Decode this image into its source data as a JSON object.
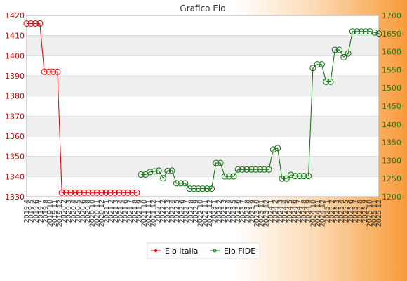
{
  "chart_data": {
    "type": "line",
    "title": "Grafico Elo",
    "x": [
      "2019 4",
      "2019 5",
      "2019 6",
      "2019 7",
      "2019 8",
      "2019 9",
      "2019 10",
      "2019 11",
      "2019 12",
      "2020 1",
      "2020 2",
      "2020 3",
      "2020 4",
      "2020 5",
      "2020 6",
      "2020 7",
      "2020 8",
      "2020 9",
      "2020 10",
      "2020 11",
      "2020 12",
      "2021 1",
      "2021 2",
      "2021 3",
      "2021 4",
      "2021 5",
      "2021 6",
      "2021 7",
      "2021 8",
      "2021 9",
      "2021 10",
      "2021 11",
      "2021 12",
      "2022 1",
      "2022 2",
      "2022 3",
      "2022 4",
      "2022 5",
      "2022 6",
      "2022 7",
      "2022 8",
      "2022 9",
      "2022 10",
      "2022 11",
      "2022 12",
      "2023 1",
      "2023 2",
      "2023 3",
      "2023 4",
      "2023 5",
      "2023 6",
      "2023 7",
      "2023 8",
      "2023 9",
      "2023 10",
      "2023 11",
      "2023 12",
      "2024 1",
      "2024 2",
      "2024 3",
      "2024 4",
      "2024 5",
      "2024 6",
      "2024 7",
      "2024 8",
      "2024 9",
      "2024 10",
      "2024 11",
      "2024 12",
      "2025 1",
      "2025 2",
      "2025 3",
      "2025 4",
      "2025 5",
      "2025 6",
      "2025 7",
      "2025 8",
      "2025 9",
      "2025 10",
      "2025 11",
      "2025 12"
    ],
    "x_tick_labels": [
      "2019 4",
      "2019 5",
      "2019 6",
      "2019 7",
      "2019 8",
      "2019 10",
      "2019 11",
      "2019 12",
      "2020 2",
      "2020 3",
      "2020 4",
      "2020 5",
      "2020 6",
      "2020 8",
      "2020 10",
      "2020 11",
      "2020 12",
      "2021 1",
      "2021 2",
      "2021 3",
      "2021 4",
      "2021 6",
      "2021 7",
      "2021 8",
      "2021 9",
      "2021 10",
      "2021 11",
      "2021 12",
      "2022 1",
      "2022 2",
      "2022 3",
      "2022 4",
      "2022 5",
      "2022 6",
      "2022 7",
      "2022 8",
      "2022 9",
      "2022 10",
      "2022 11",
      "2022 12",
      "2023 1",
      "2023 2",
      "2023 3",
      "2023 4",
      "2023 5",
      "2023 6",
      "2023 7",
      "2023 8",
      "2023 9",
      "2023 10",
      "2023 11",
      "2023 12",
      "2024 1",
      "2024 2",
      "2024 3",
      "2024 4",
      "2024 5",
      "2024 6",
      "2024 7",
      "2024 8",
      "2024 9",
      "2024 10",
      "2024 11",
      "2024 12",
      "2025 1",
      "2025 2",
      "2025 3",
      "2025 4",
      "2025 5",
      "2025 6",
      "2025 7",
      "2025 8",
      "2025 9",
      "2025 10",
      "2025 11",
      "2025 12"
    ],
    "y_left": {
      "min": 1330,
      "max": 1420,
      "ticks": [
        1330,
        1340,
        1350,
        1360,
        1370,
        1380,
        1390,
        1400,
        1410,
        1420
      ]
    },
    "y_right": {
      "min": 1200,
      "max": 1700,
      "ticks": [
        1200,
        1250,
        1300,
        1350,
        1400,
        1450,
        1500,
        1550,
        1600,
        1650,
        1700
      ]
    },
    "series": [
      {
        "name": "Elo Italia",
        "axis": "left",
        "color": "#dd0000",
        "values": [
          1416,
          1416,
          1416,
          1416,
          1392,
          1392,
          1392,
          1392,
          1332,
          1332,
          1332,
          1332,
          1332,
          1332,
          1332,
          1332,
          1332,
          1332,
          1332,
          1332,
          1332,
          1332,
          1332,
          1332,
          1332,
          1332,
          null,
          null,
          null,
          null,
          null,
          null,
          null,
          null,
          null,
          null,
          null,
          null,
          null,
          null,
          null,
          null,
          null,
          null,
          null,
          null,
          null,
          null,
          null,
          null,
          null,
          null,
          null,
          null,
          null,
          null,
          null,
          null,
          null,
          null,
          null,
          null,
          null,
          null,
          null,
          null,
          null,
          null,
          null,
          null,
          null,
          null,
          null,
          null,
          null,
          null,
          null,
          null,
          null,
          null,
          null
        ]
      },
      {
        "name": "Elo FIDE",
        "axis": "right",
        "color": "#0a6e0a",
        "values": [
          null,
          null,
          null,
          null,
          null,
          null,
          null,
          null,
          null,
          null,
          null,
          null,
          null,
          null,
          null,
          null,
          null,
          null,
          null,
          null,
          null,
          null,
          null,
          null,
          null,
          null,
          1261,
          1261,
          1268,
          1270,
          1272,
          1251,
          1271,
          1272,
          1237,
          1237,
          1237,
          1222,
          1222,
          1222,
          1222,
          1222,
          1222,
          1293,
          1293,
          1256,
          1256,
          1256,
          1275,
          1275,
          1275,
          1275,
          1275,
          1275,
          1275,
          1275,
          1330,
          1334,
          1250,
          1250,
          1260,
          1257,
          1257,
          1257,
          1257,
          1555,
          1565,
          1565,
          1517,
          1517,
          1605,
          1605,
          1585,
          1595,
          1656,
          1656,
          1656,
          1656,
          1656,
          1653,
          1650
        ]
      }
    ],
    "legend_position": "bottom-center",
    "grid": true
  }
}
